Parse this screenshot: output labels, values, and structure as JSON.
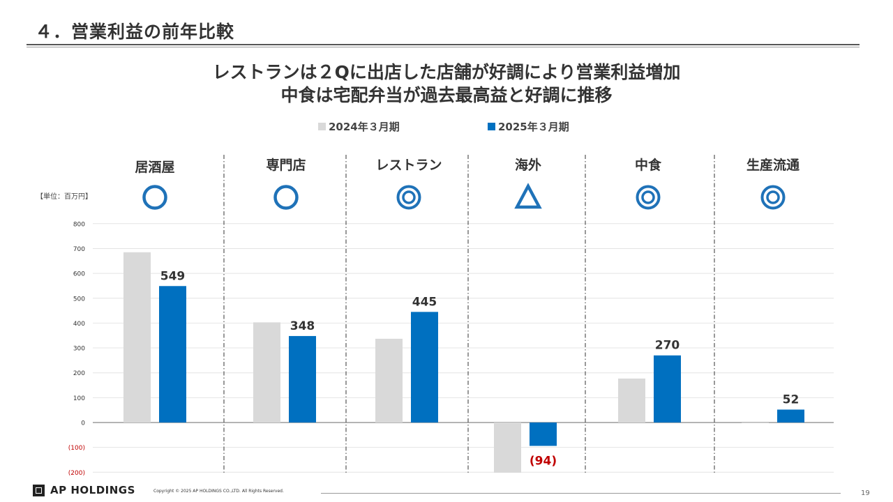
{
  "slide": {
    "title": "４．営業利益の前年比較",
    "headline_1": "レストランは２Qに出店した店舗が好調により営業利益増加",
    "headline_2": "中食は宅配弁当が過去最高益と好調に推移",
    "unit_label": "【単位：百万円】",
    "footer_brand": "AP HOLDINGS",
    "copyright": "Copyright © 2025 AP HOLDINGS CO.,LTD.  All Rights Reserved.",
    "page_number": "19"
  },
  "colors": {
    "prev_year": "#d9d9d9",
    "curr_year": "#0070c0",
    "negative_label": "#c00000",
    "mark_color": "#1f72b8"
  },
  "chart_data": {
    "type": "bar",
    "categories": [
      "居酒屋",
      "専門店",
      "レストラン",
      "海外",
      "中食",
      "生産流通"
    ],
    "marks": [
      "circle",
      "circle",
      "double-circle",
      "triangle",
      "double-circle",
      "double-circle"
    ],
    "series": [
      {
        "name": "2024年３月期",
        "values": [
          685,
          403,
          337,
          -205,
          177,
          -3
        ]
      },
      {
        "name": "2025年３月期",
        "values": [
          549,
          348,
          445,
          -94,
          270,
          52
        ]
      }
    ],
    "data_labels": [
      "549",
      "348",
      "445",
      "(94)",
      "270",
      "52"
    ],
    "ylim": [
      -200,
      800
    ],
    "yticks": [
      -200,
      -100,
      0,
      100,
      200,
      300,
      400,
      500,
      600,
      700,
      800
    ],
    "ytick_labels": [
      "(200)",
      "(100)",
      "0",
      "100",
      "200",
      "300",
      "400",
      "500",
      "600",
      "700",
      "800"
    ],
    "grid": true,
    "legend": "top-center"
  }
}
